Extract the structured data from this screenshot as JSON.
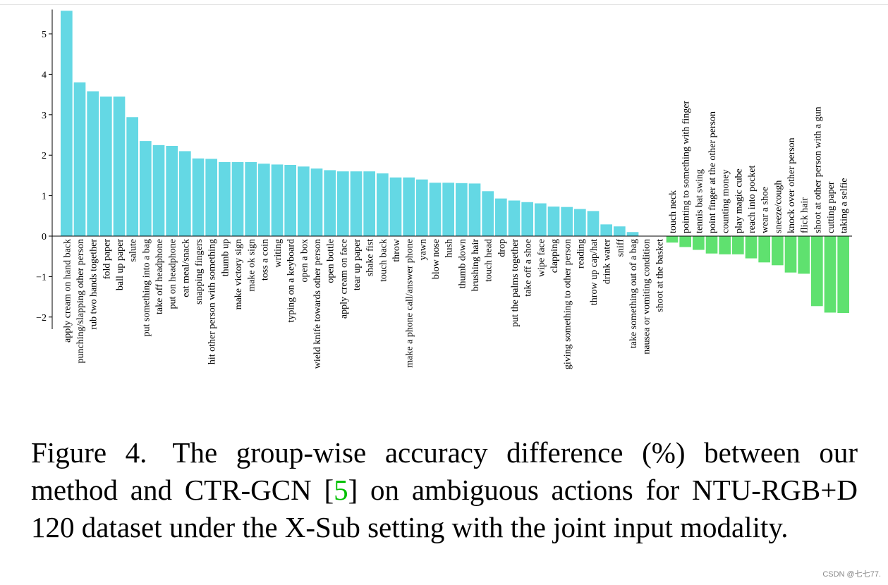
{
  "chart_data": {
    "type": "bar",
    "title": "",
    "xlabel": "",
    "ylabel": "",
    "ylim": [
      -2.3,
      5.6
    ],
    "yticks": [
      -2,
      -1,
      0,
      1,
      2,
      3,
      4,
      5
    ],
    "ytick_labels": [
      "−2",
      "−1",
      "0",
      "1",
      "2",
      "3",
      "4",
      "5"
    ],
    "grid": false,
    "legend": "none",
    "colors": {
      "positive": "#64d8e4",
      "negative": "#5fe16f"
    },
    "categories": [
      "apply cream on hand back",
      "punching/slapping other person",
      "rub two hands together",
      "fold paper",
      "ball up paper",
      "salute",
      "put something into a bag",
      "take off headphone",
      "put on headphone",
      "eat meal/snack",
      "snapping fingers",
      "hit other person with something",
      "thumb up",
      "make victory sign",
      "make ok sign",
      "toss a coin",
      "writing",
      "typing on a keyboard",
      "open a box",
      "wield knife towards other person",
      "open bottle",
      "apply cream on face",
      "tear up paper",
      "shake fist",
      "touch back",
      "throw",
      "make a phone call/answer phone",
      "yawn",
      "blow nose",
      "hush",
      "thumb down",
      "brushing hair",
      "touch head",
      "drop",
      "put the palms together",
      "take off a shoe",
      "wipe face",
      "clapping",
      "giving something to other person",
      "reading",
      "throw up cap/hat",
      "drink water",
      "sniff",
      "take something out of a bag",
      "nausea or vomiting condition",
      "shoot at the basket",
      "touch neck",
      "pointing to something with finger",
      "tennis bat swing",
      "point finger at the other person",
      "counting money",
      "play magic cube",
      "reach into pocket",
      "wear a shoe",
      "sneeze/cough",
      "knock over other person",
      "flick hair",
      "shoot at other person with a gun",
      "cutting paper",
      "taking a selfie"
    ],
    "values": [
      5.57,
      3.8,
      3.58,
      3.45,
      3.45,
      2.94,
      2.35,
      2.25,
      2.23,
      2.1,
      1.92,
      1.91,
      1.83,
      1.83,
      1.83,
      1.79,
      1.77,
      1.76,
      1.72,
      1.67,
      1.63,
      1.6,
      1.6,
      1.6,
      1.55,
      1.45,
      1.45,
      1.4,
      1.32,
      1.32,
      1.31,
      1.3,
      1.11,
      0.93,
      0.88,
      0.84,
      0.81,
      0.73,
      0.72,
      0.67,
      0.62,
      0.29,
      0.24,
      0.1,
      0.0,
      0.0,
      -0.16,
      -0.27,
      -0.34,
      -0.43,
      -0.45,
      -0.45,
      -0.55,
      -0.65,
      -0.72,
      -0.9,
      -0.93,
      -1.73,
      -1.89,
      -1.9
    ]
  },
  "caption": {
    "label": "Figure 4.",
    "text_before_ref": "The group-wise accuracy difference (%) between our method and CTR-GCN [",
    "ref": "5",
    "text_after_ref": "] on ambiguous actions for NTU-RGB+D 120 dataset under the X-Sub setting with the joint input modality."
  },
  "watermark": "CSDN @七七77."
}
